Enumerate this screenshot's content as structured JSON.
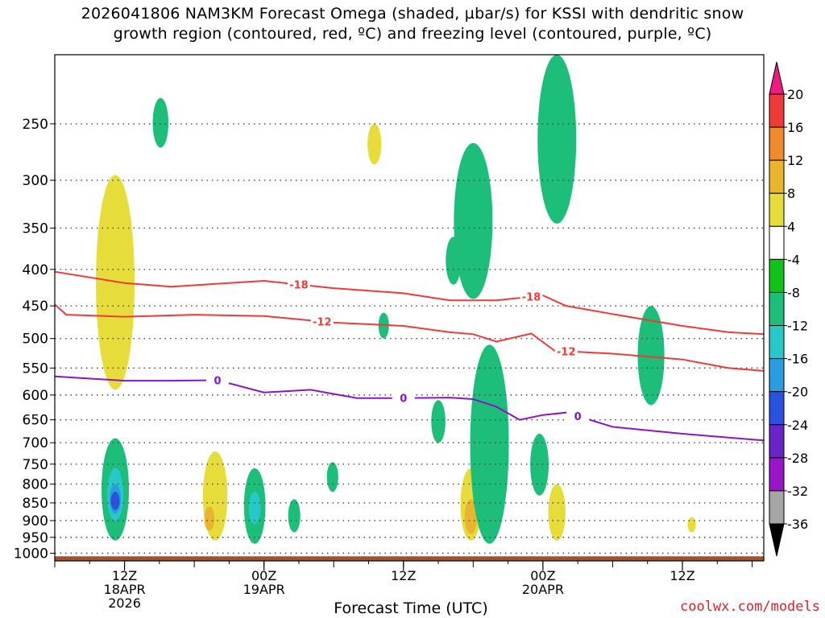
{
  "header": {
    "title_line1": "2026041806 NAM3KM Forecast Omega (shaded, µbar/s) for KSSI with dendritic snow",
    "title_line2": "growth region (contoured, red, ºC) and freezing level (contoured, purple, ºC)"
  },
  "footer": {
    "x_axis_title": "Forecast Time (UTC)",
    "credit": "coolwx.com/models"
  },
  "chart_data": {
    "type": "heatmap",
    "title": "2026041806 NAM3KM Forecast Omega (shaded, µbar/s) for KSSI with dendritic snow growth region (contoured, red, ºC) and freezing level (contoured, purple, ºC)",
    "xlabel": "Forecast Time (UTC)",
    "ylabel": "",
    "x_unit": "forecast hour from 2026041806",
    "xlim": [
      0,
      61
    ],
    "ylim_hpa": [
      1025,
      200
    ],
    "y_scale": "log-pressure",
    "grid": true,
    "y_ticks": [
      250,
      300,
      350,
      400,
      450,
      500,
      550,
      600,
      650,
      700,
      750,
      800,
      850,
      900,
      950,
      1000
    ],
    "x_ticks": [
      {
        "hour": 6,
        "label": [
          "12Z",
          "18APR",
          "2026"
        ]
      },
      {
        "hour": 18,
        "label": [
          "00Z",
          "19APR"
        ]
      },
      {
        "hour": 30,
        "label": [
          "12Z"
        ]
      },
      {
        "hour": 42,
        "label": [
          "00Z",
          "20APR"
        ]
      },
      {
        "hour": 54,
        "label": [
          "12Z"
        ]
      }
    ],
    "colorbar": {
      "labels": [
        "20",
        "16",
        "12",
        "8",
        "4",
        "-4",
        "-8",
        "-12",
        "-16",
        "-20",
        "-24",
        "-28",
        "-32",
        "-36"
      ],
      "colors": [
        "#f0197f",
        "#ee3a38",
        "#f08a2c",
        "#e8b52c",
        "#e6dc3a",
        "#ffffff",
        "#11c21a",
        "#1dbe7a",
        "#28c8c8",
        "#2a9de0",
        "#2a52e0",
        "#6a24c8",
        "#9a14c8",
        "#a6a6a6",
        "#000000"
      ]
    },
    "omega_regions": [
      {
        "hour": 5.2,
        "p_top": 295,
        "p_bot": 590,
        "value": 4
      },
      {
        "hour": 5.2,
        "p_top": 690,
        "p_bot": 960,
        "value": -8
      },
      {
        "hour": 5.2,
        "p_top": 760,
        "p_bot": 900,
        "value": -12
      },
      {
        "hour": 5.2,
        "p_top": 800,
        "p_bot": 880,
        "value": -16
      },
      {
        "hour": 5.2,
        "p_top": 820,
        "p_bot": 870,
        "value": -20
      },
      {
        "hour": 9.1,
        "p_top": 230,
        "p_bot": 270,
        "value": -8
      },
      {
        "hour": 13.8,
        "p_top": 720,
        "p_bot": 960,
        "value": 4
      },
      {
        "hour": 13.3,
        "p_top": 860,
        "p_bot": 930,
        "value": 8
      },
      {
        "hour": 17.2,
        "p_top": 760,
        "p_bot": 970,
        "value": -8
      },
      {
        "hour": 17.2,
        "p_top": 820,
        "p_bot": 910,
        "value": -12
      },
      {
        "hour": 20.6,
        "p_top": 840,
        "p_bot": 935,
        "value": -8
      },
      {
        "hour": 23.9,
        "p_top": 745,
        "p_bot": 820,
        "value": -8
      },
      {
        "hour": 27.5,
        "p_top": 250,
        "p_bot": 285,
        "value": 4
      },
      {
        "hour": 28.3,
        "p_top": 460,
        "p_bot": 500,
        "value": -8
      },
      {
        "hour": 33.0,
        "p_top": 610,
        "p_bot": 700,
        "value": -8
      },
      {
        "hour": 34.3,
        "p_top": 360,
        "p_bot": 420,
        "value": -8
      },
      {
        "hour": 36.0,
        "p_top": 266,
        "p_bot": 440,
        "value": -8
      },
      {
        "hour": 35.8,
        "p_top": 760,
        "p_bot": 960,
        "value": 4
      },
      {
        "hour": 35.8,
        "p_top": 840,
        "p_bot": 940,
        "value": 8
      },
      {
        "hour": 37.4,
        "p_top": 510,
        "p_bot": 970,
        "value": -8
      },
      {
        "hour": 41.7,
        "p_top": 680,
        "p_bot": 830,
        "value": -8
      },
      {
        "hour": 43.2,
        "p_top": 200,
        "p_bot": 345,
        "value": -8
      },
      {
        "hour": 43.2,
        "p_top": 800,
        "p_bot": 960,
        "value": 4
      },
      {
        "hour": 51.3,
        "p_top": 450,
        "p_bot": 620,
        "value": -8
      },
      {
        "hour": 54.8,
        "p_top": 890,
        "p_bot": 935,
        "value": 4
      }
    ],
    "series": [
      {
        "kind": "dendritic-snow-growth isotherm",
        "label": "-18",
        "color": "#ee3a38",
        "points": [
          [
            0,
            403
          ],
          [
            6,
            418
          ],
          [
            10,
            423
          ],
          [
            18,
            415
          ],
          [
            24,
            425
          ],
          [
            30,
            432
          ],
          [
            34,
            442
          ],
          [
            38,
            442
          ],
          [
            42,
            435
          ],
          [
            44,
            450
          ],
          [
            48,
            462
          ],
          [
            54,
            480
          ],
          [
            58,
            490
          ],
          [
            61,
            493
          ]
        ]
      },
      {
        "kind": "dendritic-snow-growth isotherm",
        "label": "-12",
        "color": "#ee3a38",
        "points": [
          [
            0,
            448
          ],
          [
            1,
            463
          ],
          [
            6,
            466
          ],
          [
            12,
            463
          ],
          [
            18,
            465
          ],
          [
            24,
            475
          ],
          [
            30,
            480
          ],
          [
            34,
            490
          ],
          [
            36,
            493
          ],
          [
            38,
            505
          ],
          [
            41,
            492
          ],
          [
            43,
            520
          ],
          [
            48,
            525
          ],
          [
            54,
            535
          ],
          [
            58,
            550
          ],
          [
            61,
            555
          ]
        ]
      },
      {
        "kind": "freezing level",
        "label": "0",
        "color": "#8b14c8",
        "points": [
          [
            0,
            565
          ],
          [
            6,
            573
          ],
          [
            10,
            573
          ],
          [
            14,
            572
          ],
          [
            18,
            595
          ],
          [
            22,
            590
          ],
          [
            26,
            606
          ],
          [
            30,
            606
          ],
          [
            34,
            605
          ],
          [
            36,
            608
          ],
          [
            38,
            623
          ],
          [
            40,
            650
          ],
          [
            42,
            640
          ],
          [
            44,
            635
          ],
          [
            48,
            665
          ],
          [
            54,
            680
          ],
          [
            61,
            695
          ]
        ]
      }
    ]
  }
}
